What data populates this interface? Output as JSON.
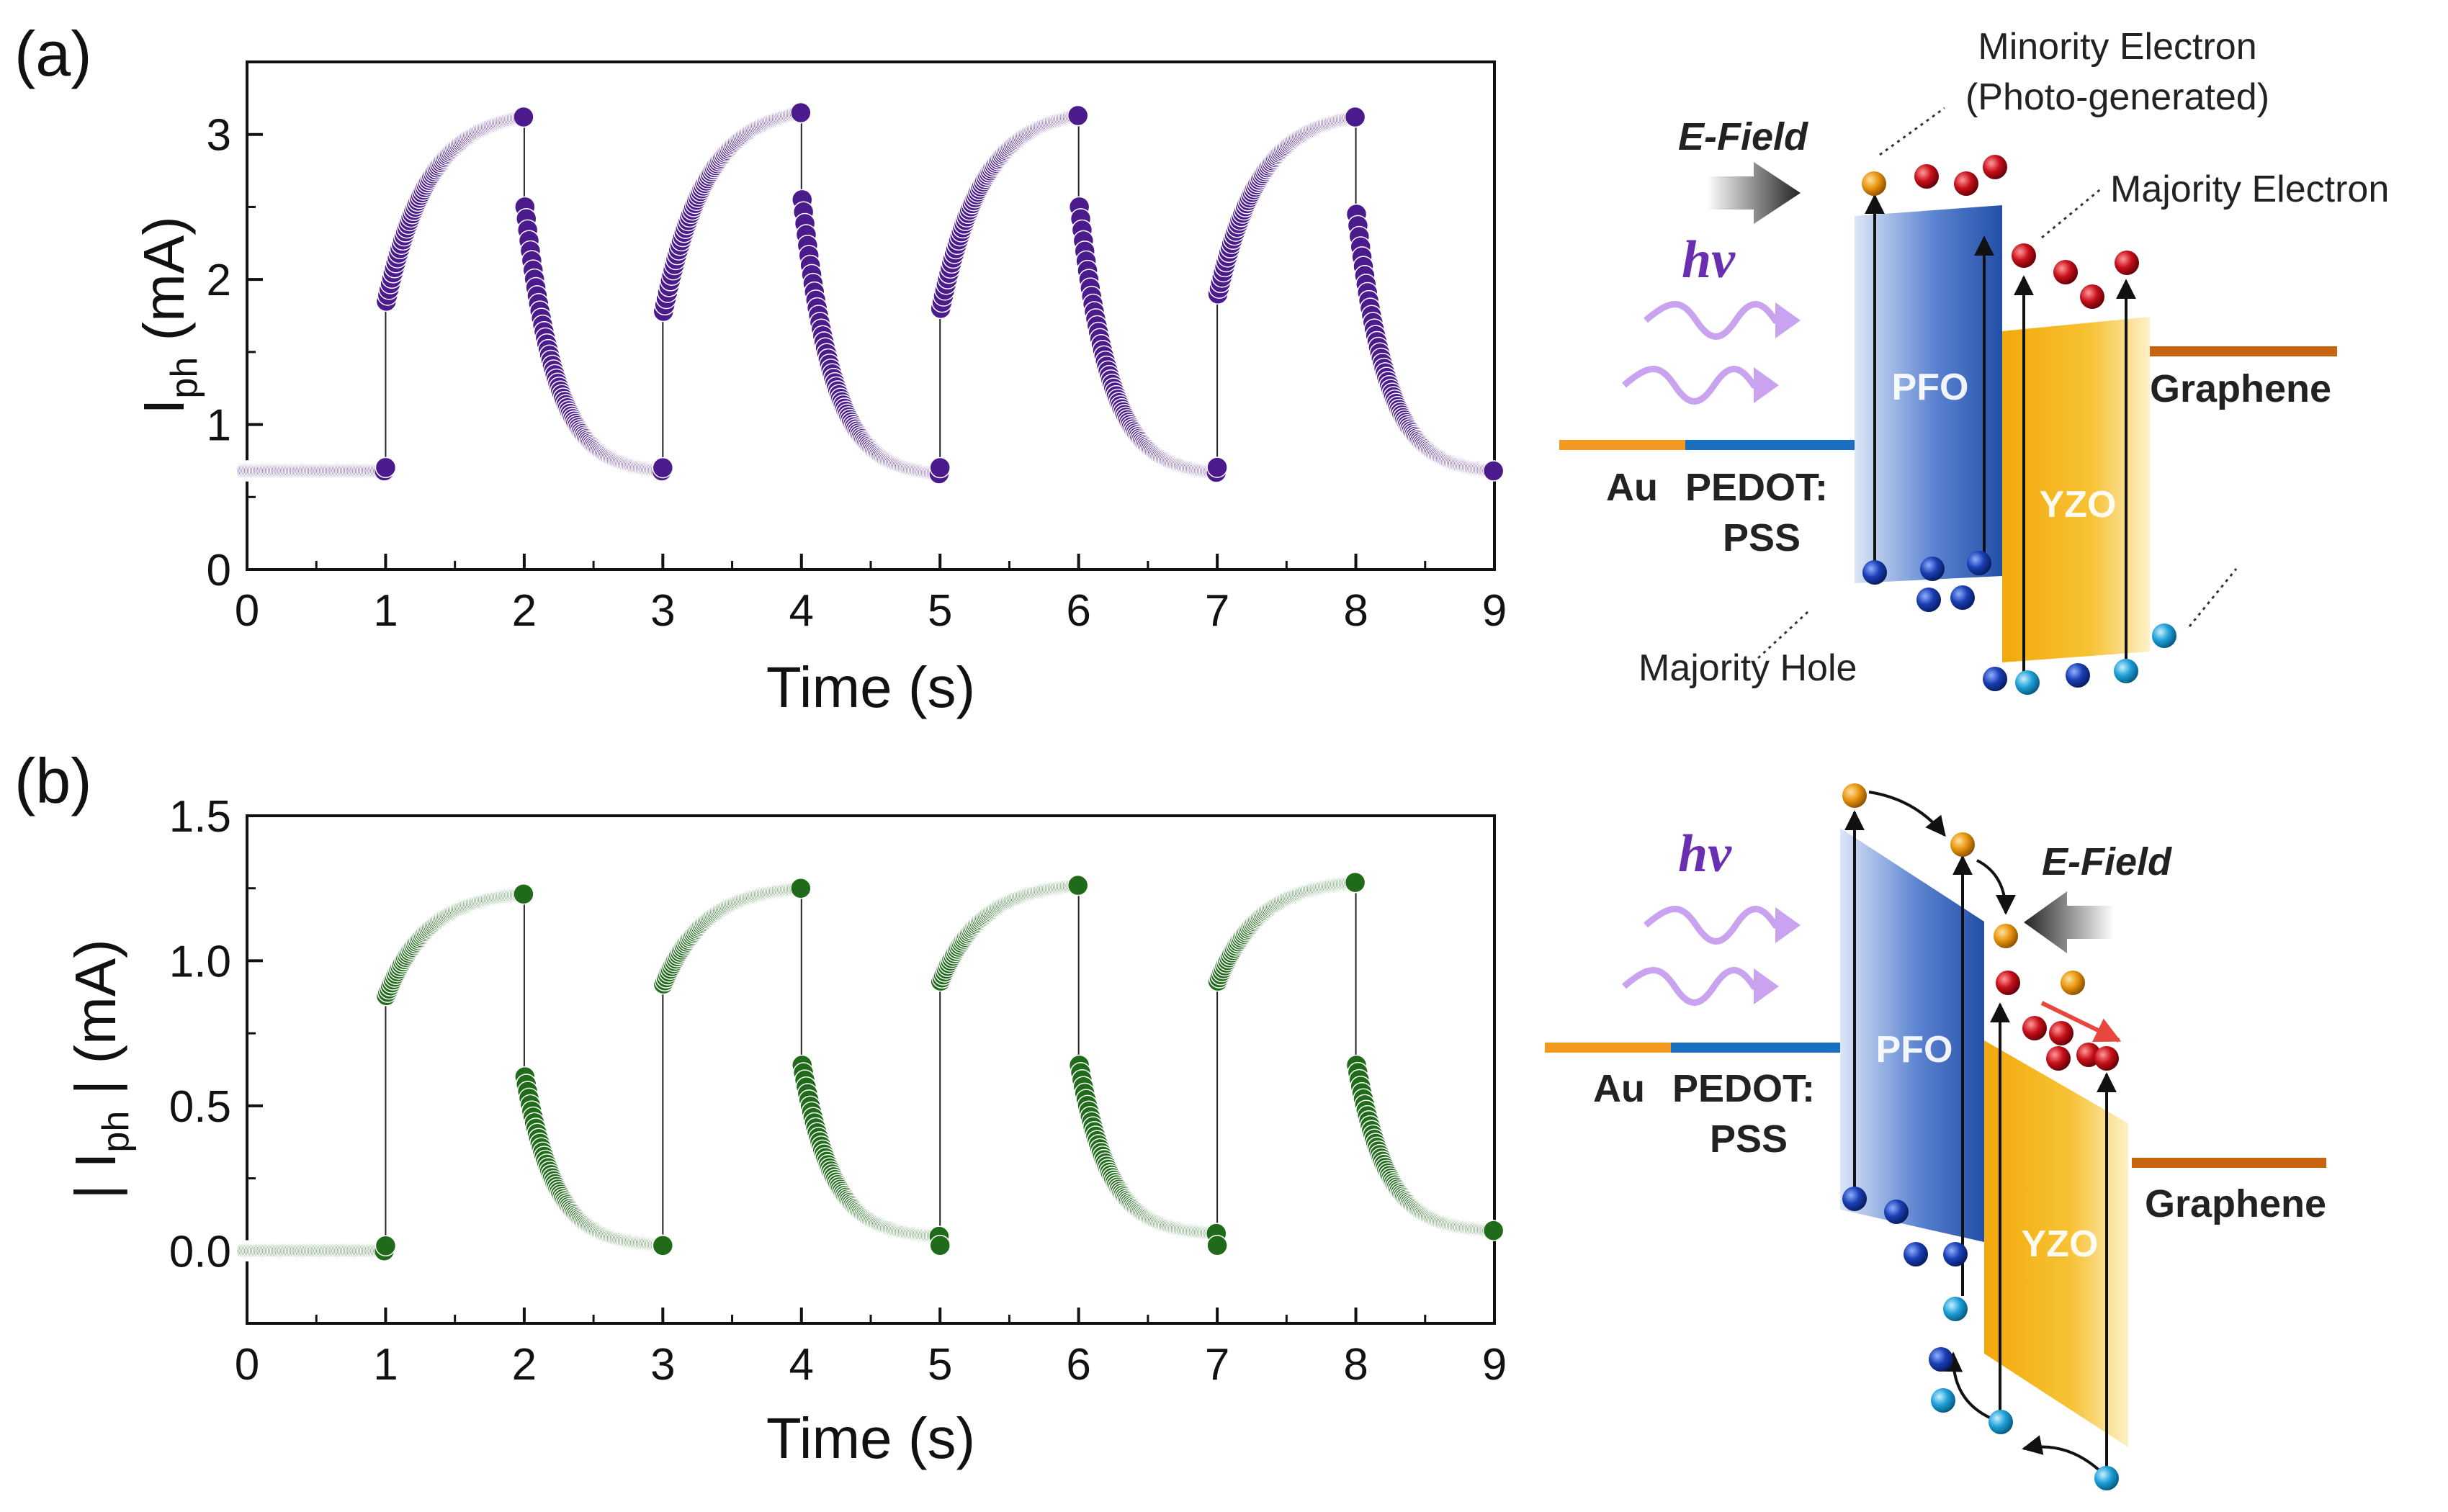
{
  "chart_data": [
    {
      "type": "scatter",
      "panel_label": "(a)",
      "title": "",
      "xlabel": "Time (s)",
      "ylabel_main": "I",
      "ylabel_sub": "ph",
      "ylabel_unit": " (mA)",
      "xlim": [
        0,
        9
      ],
      "ylim": [
        0,
        3.5
      ],
      "xticks": [
        "0",
        "1",
        "2",
        "3",
        "4",
        "5",
        "6",
        "7",
        "8",
        "9"
      ],
      "yticks": [
        "0",
        "1",
        "2",
        "3"
      ],
      "ytick_values": [
        0,
        1,
        2,
        3
      ],
      "color": "#4b1a8c",
      "series": [
        {
          "name": "Iph",
          "baseline": 0.68,
          "cycles": [
            {
              "on": 1,
              "off": 2,
              "rise_start": 1.85,
              "rise_peak": 3.12,
              "fall_start": 2.5,
              "fall_end": 0.68
            },
            {
              "on": 3,
              "off": 4,
              "rise_start": 1.78,
              "rise_peak": 3.15,
              "fall_start": 2.55,
              "fall_end": 0.66
            },
            {
              "on": 5,
              "off": 6,
              "rise_start": 1.8,
              "rise_peak": 3.13,
              "fall_start": 2.5,
              "fall_end": 0.67
            },
            {
              "on": 7,
              "off": 8,
              "rise_start": 1.9,
              "rise_peak": 3.12,
              "fall_start": 2.45,
              "fall_end": 0.68
            }
          ]
        }
      ]
    },
    {
      "type": "scatter",
      "panel_label": "(b)",
      "title": "",
      "xlabel": "Time (s)",
      "ylabel_main": "| I",
      "ylabel_sub": "ph",
      "ylabel_unit": " | (mA)",
      "xlim": [
        0,
        9
      ],
      "ylim": [
        -0.25,
        1.5
      ],
      "xticks": [
        "0",
        "1",
        "2",
        "3",
        "4",
        "5",
        "6",
        "7",
        "8",
        "9"
      ],
      "yticks": [
        "0.0",
        "0.5",
        "1.0",
        "1.5"
      ],
      "ytick_values": [
        0,
        0.5,
        1.0,
        1.5
      ],
      "color": "#1f6b1a",
      "series": [
        {
          "name": "|Iph|",
          "baseline": 0.0,
          "cycles": [
            {
              "on": 1,
              "off": 2,
              "rise_start": 0.88,
              "rise_peak": 1.23,
              "fall_start": 0.6,
              "fall_end": 0.02
            },
            {
              "on": 3,
              "off": 4,
              "rise_start": 0.92,
              "rise_peak": 1.25,
              "fall_start": 0.64,
              "fall_end": 0.05
            },
            {
              "on": 5,
              "off": 6,
              "rise_start": 0.93,
              "rise_peak": 1.26,
              "fall_start": 0.64,
              "fall_end": 0.06
            },
            {
              "on": 7,
              "off": 8,
              "rise_start": 0.93,
              "rise_peak": 1.27,
              "fall_start": 0.64,
              "fall_end": 0.07
            }
          ]
        }
      ]
    }
  ],
  "diagram_a": {
    "minority_label_1": "Minority Electron",
    "minority_label_2": "(Photo-generated)",
    "majority_electron": "Majority Electron",
    "majority_hole": "Majority Hole",
    "efield": "E-Field",
    "hv": "hv",
    "pfo": "PFO",
    "yzo": "YZO",
    "au": "Au",
    "pedot_1": "PEDOT:",
    "pedot_2": "PSS",
    "graphene": "Graphene"
  },
  "diagram_b": {
    "efield": "E-Field",
    "hv": "hv",
    "pfo": "PFO",
    "yzo": "YZO",
    "au": "Au",
    "pedot_1": "PEDOT:",
    "pedot_2": "PSS",
    "graphene": "Graphene"
  },
  "colors": {
    "purple": "#4b1a8c",
    "green": "#1f6b1a",
    "au": "#f39a1e",
    "pedot": "#1a6fc0",
    "graphene": "#c8640f",
    "pfo": "#2b5cb8",
    "yzo": "#f6b817"
  }
}
